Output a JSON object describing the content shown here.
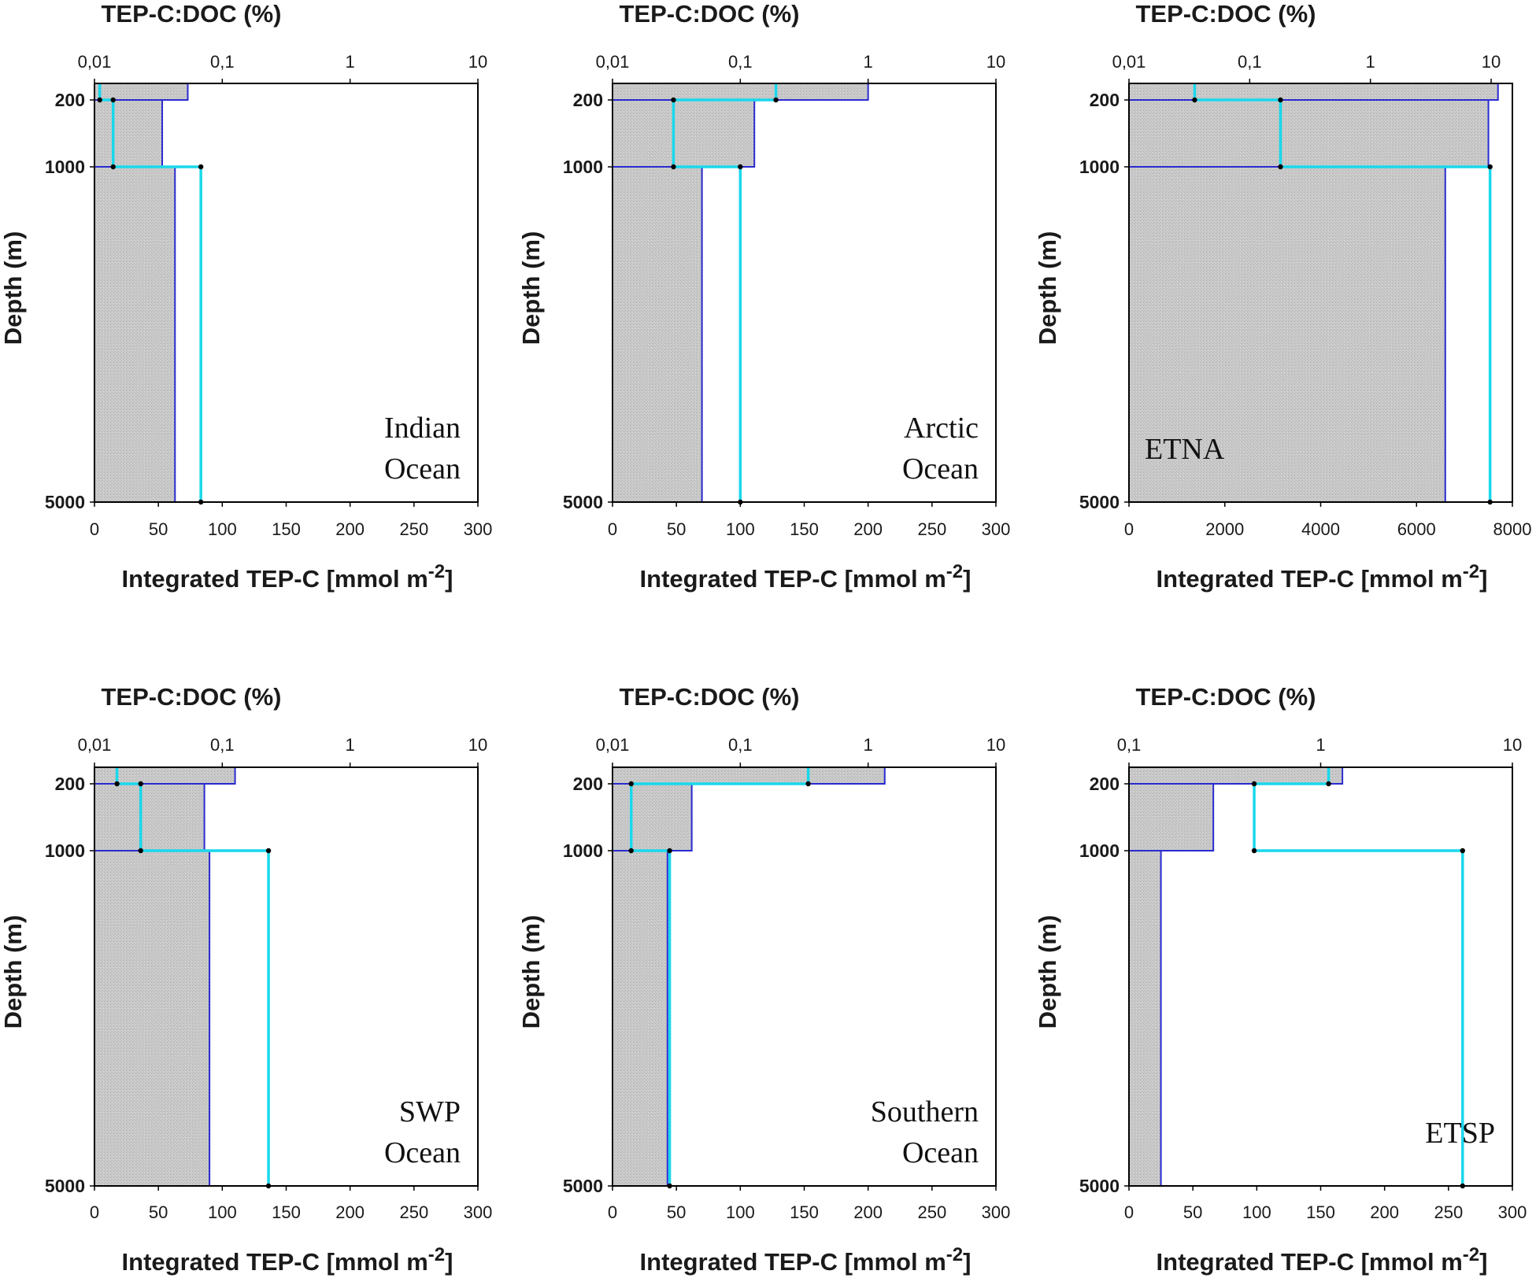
{
  "chart_data": [
    {
      "type": "bar",
      "title": "TEP-C:DOC (%)",
      "xlabel": "Integrated TEP-C [mmol m-2]",
      "ylabel": "Depth (m)",
      "region": [
        "Indian",
        "Ocean"
      ],
      "region_position": "bottom-right",
      "depth_ticks": [
        "200",
        "1000",
        "5000"
      ],
      "bottom_axis": {
        "range": [
          0,
          300
        ],
        "ticks": [
          "0",
          "50",
          "100",
          "150",
          "200",
          "250",
          "300"
        ]
      },
      "top_axis": {
        "scale": "log",
        "range": [
          0.01,
          10
        ],
        "ticks": [
          "0,01",
          "0,1",
          "1",
          "10"
        ]
      },
      "layers": [
        "0-200",
        "200-1000",
        "1000-5000"
      ],
      "integrated_tep_c": [
        73,
        53,
        63
      ],
      "tep_c_doc_percent": [
        0.011,
        0.014,
        0.068
      ],
      "colors": {
        "bars": "#c6c6c6",
        "bar_edge": "#2a2ad0",
        "ratio_line": "#19d8ec",
        "marker": "#000000"
      }
    },
    {
      "type": "bar",
      "title": "TEP-C:DOC (%)",
      "xlabel": "Integrated TEP-C [mmol m-2]",
      "ylabel": "Depth (m)",
      "region": [
        "Arctic",
        "Ocean"
      ],
      "region_position": "bottom-right",
      "depth_ticks": [
        "200",
        "1000",
        "5000"
      ],
      "bottom_axis": {
        "range": [
          0,
          300
        ],
        "ticks": [
          "0",
          "50",
          "100",
          "150",
          "200",
          "250",
          "300"
        ]
      },
      "top_axis": {
        "scale": "log",
        "range": [
          0.01,
          10
        ],
        "ticks": [
          "0,01",
          "0,1",
          "1",
          "10"
        ]
      },
      "layers": [
        "0-200",
        "200-1000",
        "1000-5000"
      ],
      "integrated_tep_c": [
        200,
        111,
        70
      ],
      "tep_c_doc_percent": [
        0.19,
        0.03,
        0.1
      ],
      "colors": {
        "bars": "#c6c6c6",
        "bar_edge": "#2a2ad0",
        "ratio_line": "#19d8ec",
        "marker": "#000000"
      }
    },
    {
      "type": "bar",
      "title": "TEP-C:DOC (%)",
      "xlabel": "Integrated TEP-C [mmol m-2]",
      "ylabel": "Depth (m)",
      "region": [
        "ETNA"
      ],
      "region_position": "bottom-left",
      "depth_ticks": [
        "200",
        "1000",
        "5000"
      ],
      "bottom_axis": {
        "range": [
          0,
          8000
        ],
        "ticks": [
          "0",
          "2000",
          "4000",
          "6000",
          "8000"
        ]
      },
      "top_axis": {
        "scale": "log",
        "range": [
          0.01,
          15
        ],
        "ticks": [
          "0,01",
          "0,1",
          "1",
          "10"
        ]
      },
      "layers": [
        "0-200",
        "200-1000",
        "1000-5000"
      ],
      "integrated_tep_c": [
        7700,
        7500,
        6600
      ],
      "tep_c_doc_percent": [
        0.035,
        0.18,
        9.8
      ],
      "colors": {
        "bars": "#c6c6c6",
        "bar_edge": "#2a2ad0",
        "ratio_line": "#19d8ec",
        "marker": "#000000"
      }
    },
    {
      "type": "bar",
      "title": "TEP-C:DOC (%)",
      "xlabel": "Integrated TEP-C [mmol m-2]",
      "ylabel": "Depth (m)",
      "region": [
        "SWP",
        "Ocean"
      ],
      "region_position": "bottom-right",
      "depth_ticks": [
        "200",
        "1000",
        "5000"
      ],
      "bottom_axis": {
        "range": [
          0,
          300
        ],
        "ticks": [
          "0",
          "50",
          "100",
          "150",
          "200",
          "250",
          "300"
        ]
      },
      "top_axis": {
        "scale": "log",
        "range": [
          0.01,
          10
        ],
        "ticks": [
          "0,01",
          "0,1",
          "1",
          "10"
        ]
      },
      "layers": [
        "0-200",
        "200-1000",
        "1000-5000"
      ],
      "integrated_tep_c": [
        110,
        86,
        90
      ],
      "tep_c_doc_percent": [
        0.015,
        0.023,
        0.23
      ],
      "colors": {
        "bars": "#c6c6c6",
        "bar_edge": "#2a2ad0",
        "ratio_line": "#19d8ec",
        "marker": "#000000"
      }
    },
    {
      "type": "bar",
      "title": "TEP-C:DOC (%)",
      "xlabel": "Integrated TEP-C [mmol m-2]",
      "ylabel": "Depth (m)",
      "region": [
        "Southern",
        "Ocean"
      ],
      "region_position": "bottom-right",
      "depth_ticks": [
        "200",
        "1000",
        "5000"
      ],
      "bottom_axis": {
        "range": [
          0,
          300
        ],
        "ticks": [
          "0",
          "50",
          "100",
          "150",
          "200",
          "250",
          "300"
        ]
      },
      "top_axis": {
        "scale": "log",
        "range": [
          0.01,
          10
        ],
        "ticks": [
          "0,01",
          "0,1",
          "1",
          "10"
        ]
      },
      "layers": [
        "0-200",
        "200-1000",
        "1000-5000"
      ],
      "integrated_tep_c": [
        213,
        62,
        43
      ],
      "tep_c_doc_percent": [
        0.34,
        0.014,
        0.028
      ],
      "colors": {
        "bars": "#c6c6c6",
        "bar_edge": "#2a2ad0",
        "ratio_line": "#19d8ec",
        "marker": "#000000"
      }
    },
    {
      "type": "bar",
      "title": "TEP-C:DOC (%)",
      "xlabel": "Integrated TEP-C [mmol m-2]",
      "ylabel": "Depth (m)",
      "region": [
        "ETSP"
      ],
      "region_position": "bottom-right",
      "depth_ticks": [
        "200",
        "1000",
        "5000"
      ],
      "bottom_axis": {
        "range": [
          0,
          300
        ],
        "ticks": [
          "0",
          "50",
          "100",
          "150",
          "200",
          "250",
          "300"
        ]
      },
      "top_axis": {
        "scale": "log",
        "range": [
          0.1,
          10
        ],
        "ticks": [
          "0,1",
          "1",
          "10"
        ]
      },
      "layers": [
        "0-200",
        "200-1000",
        "1000-5000"
      ],
      "integrated_tep_c": [
        167,
        66,
        25
      ],
      "tep_c_doc_percent": [
        1.1,
        0.45,
        5.5
      ],
      "colors": {
        "bars": "#c6c6c6",
        "bar_edge": "#2a2ad0",
        "ratio_line": "#19d8ec",
        "marker": "#000000"
      }
    }
  ]
}
